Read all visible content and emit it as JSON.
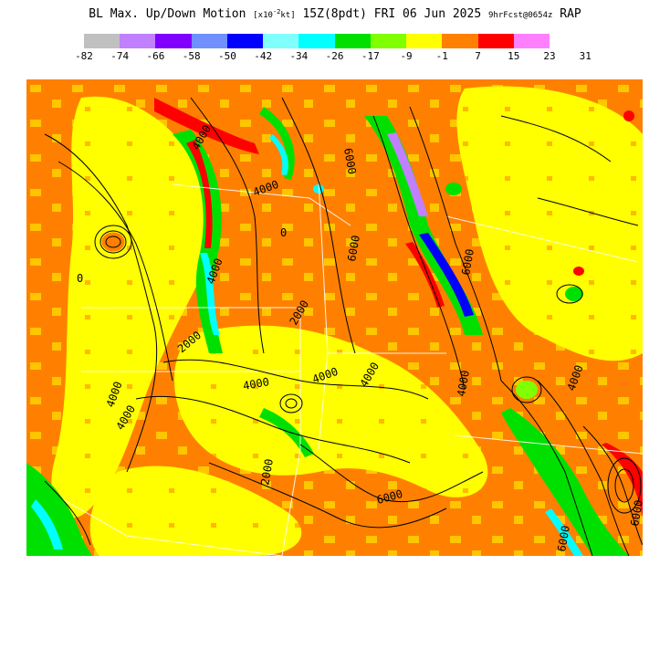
{
  "header": {
    "title_main": "BL Max. Up/Down Motion",
    "units_prefix": "[x10",
    "units_exp": "-2",
    "units_suffix": "kt]",
    "valid": "15Z(8pdt) FRI 06 Jun 2025",
    "run": "9hrFcst@0654z",
    "model": "RAP"
  },
  "legend": {
    "colors": [
      "#c0c0c0",
      "#c080ff",
      "#8000ff",
      "#7090ff",
      "#0000ff",
      "#80ffff",
      "#00ffff",
      "#00e000",
      "#80ff00",
      "#ffff00",
      "#ff8000",
      "#ff0000",
      "#ff80ff"
    ],
    "tick_labels": [
      "-82",
      "-74",
      "-66",
      "-58",
      "-50",
      "-42",
      "-34",
      "-26",
      "-17",
      "-9",
      "-1",
      "7",
      "15",
      "23",
      "31"
    ]
  },
  "map": {
    "contour_labels": [
      "4000",
      "4000",
      "4000",
      "4000",
      "4000",
      "4000",
      "4000",
      "4000",
      "4000",
      "4000",
      "6000",
      "6000",
      "6000",
      "6000",
      "6000",
      "6000",
      "2000",
      "2000",
      "2000",
      "0",
      "0"
    ]
  }
}
